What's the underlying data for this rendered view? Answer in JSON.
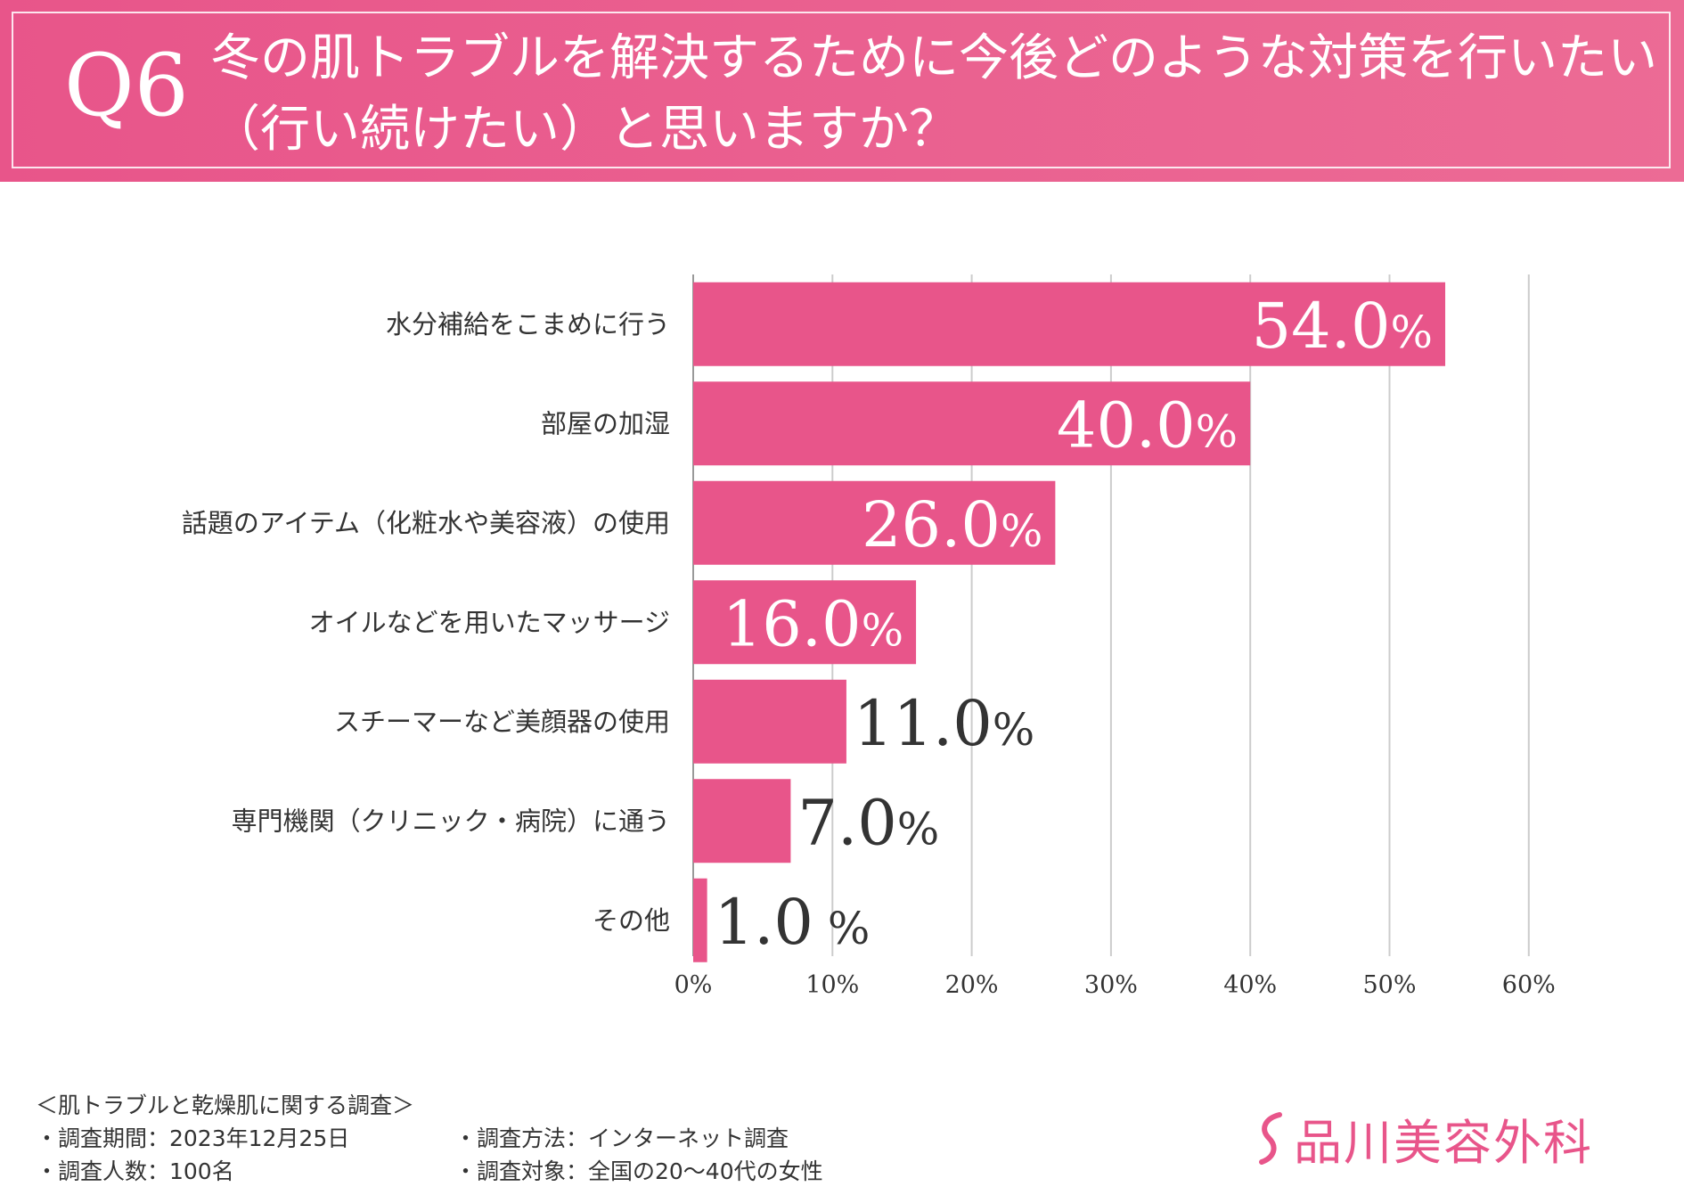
{
  "header": {
    "q_label": "Q6",
    "title": "冬の肌トラブルを解決するために今後どのような対策を行いたい（行い続けたい）と思いますか？"
  },
  "colors": {
    "accent": "#e8558a",
    "bar": "#e8558a",
    "grid": "#cccccc"
  },
  "chart_data": {
    "type": "bar",
    "orientation": "horizontal",
    "title": "冬の肌トラブルを解決するために今後どのような対策を行いたい（行い続けたい）と思いますか？",
    "categories": [
      "水分補給をこまめに行う",
      "部屋の加湿",
      "話題のアイテム（化粧水や美容液）の使用",
      "オイルなどを用いたマッサージ",
      "スチーマーなど美顔器の使用",
      "専門機関（クリニック・病院）に通う",
      "その他"
    ],
    "values": [
      54.0,
      40.0,
      26.0,
      16.0,
      11.0,
      7.0,
      1.0
    ],
    "value_labels": [
      "54.0",
      "40.0",
      "26.0",
      "16.0",
      "11.0",
      "7.0",
      "1.0"
    ],
    "value_unit": "%",
    "xlim": [
      0,
      60
    ],
    "xticks": [
      "0%",
      "10%",
      "20%",
      "30%",
      "40%",
      "50%",
      "60%"
    ],
    "grid": true,
    "xlabel": "",
    "ylabel": ""
  },
  "footer": {
    "survey_title": "＜肌トラブルと乾燥肌に関する調査＞",
    "period": "・調査期間：2023年12月25日",
    "method": "・調査方法：インターネット調査",
    "respondents": "・調査人数：100名",
    "target": "・調査対象：全国の20～40代の女性"
  },
  "logo": {
    "text": "品川美容外科",
    "icon": "s-swoosh-icon"
  }
}
